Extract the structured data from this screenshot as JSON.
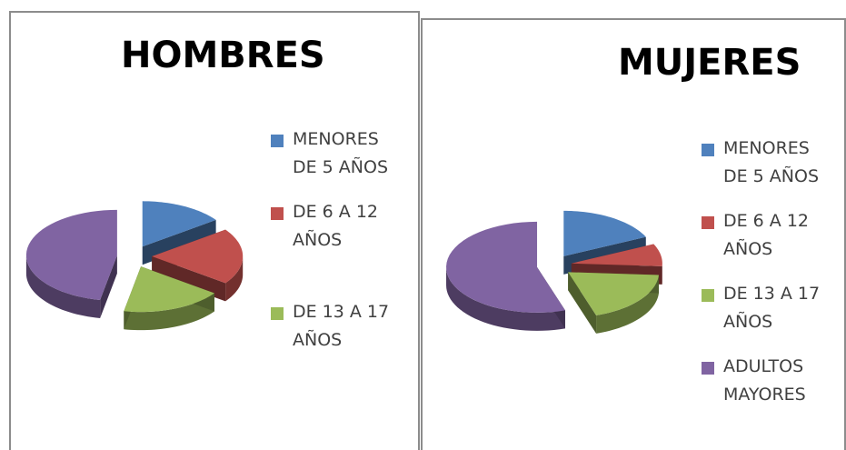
{
  "chart_data": [
    {
      "type": "pie",
      "title": "HOMBRES",
      "categories": [
        "MENORES DE 5 AÑOS",
        "DE 6 A 12 AÑOS",
        "DE 13 A 17 AÑOS",
        null
      ],
      "values": [
        15,
        20,
        18,
        47
      ],
      "colors": [
        "#4f81bd",
        "#c0504d",
        "#9bbb59",
        "#8064a2"
      ]
    },
    {
      "type": "pie",
      "title": "MUJERES",
      "categories": [
        "MENORES DE 5 AÑOS",
        "DE 6 A 12 AÑOS",
        "DE 13 A 17 AÑOS",
        "ADULTOS MAYORES"
      ],
      "values": [
        18,
        8,
        19,
        55
      ],
      "colors": [
        "#4f81bd",
        "#c0504d",
        "#9bbb59",
        "#8064a2"
      ]
    }
  ]
}
